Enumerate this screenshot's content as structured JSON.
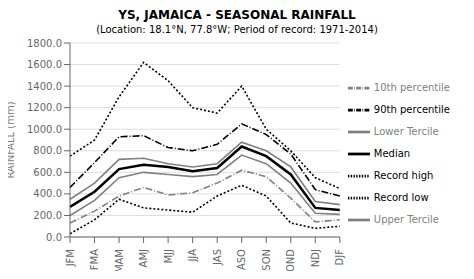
{
  "chart_data": {
    "type": "line",
    "title": "YS, JAMAICA - SEASONAL RAINFALL",
    "subtitle": "(Location: 18.1°N, 77.8°W; Period of record: 1971-2014)",
    "ylabel": "RAINFALL (mm)",
    "categories": [
      "JFM",
      "FMA",
      "MAM",
      "AMJ",
      "MJJ",
      "JJA",
      "JAS",
      "ASO",
      "SON",
      "OND",
      "NDJ",
      "DJF"
    ],
    "series": [
      {
        "name": "Record high",
        "color": "#000000",
        "line_style": "dotted",
        "values": [
          750,
          900,
          1300,
          1620,
          1450,
          1200,
          1150,
          1400,
          1000,
          800,
          550,
          450
        ]
      },
      {
        "name": "90th percentile",
        "color": "#000000",
        "line_style": "dashdot",
        "values": [
          460,
          690,
          930,
          940,
          830,
          800,
          860,
          1050,
          950,
          770,
          440,
          380
        ]
      },
      {
        "name": "Upper Tercile",
        "color": "#808080",
        "line_style": "solid",
        "values": [
          350,
          500,
          720,
          730,
          680,
          650,
          680,
          880,
          800,
          650,
          330,
          300
        ]
      },
      {
        "name": "Median",
        "color": "#000000",
        "line_style": "solid",
        "values": [
          280,
          420,
          630,
          670,
          650,
          610,
          640,
          840,
          750,
          580,
          270,
          250
        ]
      },
      {
        "name": "Lower Tercile",
        "color": "#808080",
        "line_style": "solid",
        "values": [
          200,
          340,
          550,
          600,
          580,
          560,
          580,
          760,
          680,
          500,
          220,
          210
        ]
      },
      {
        "name": "10th percentile",
        "color": "#808080",
        "line_style": "dashdot",
        "values": [
          130,
          240,
          380,
          460,
          390,
          410,
          500,
          620,
          560,
          360,
          140,
          160
        ]
      },
      {
        "name": "Record low",
        "color": "#000000",
        "line_style": "dotted",
        "values": [
          30,
          160,
          350,
          270,
          250,
          230,
          380,
          480,
          380,
          130,
          80,
          100
        ]
      }
    ],
    "ylim": [
      0,
      1800
    ],
    "yticks": [
      {
        "value": 0,
        "label": "0.0"
      },
      {
        "value": 200,
        "label": "200.0"
      },
      {
        "value": 400,
        "label": "400.0"
      },
      {
        "value": 600,
        "label": "600.0"
      },
      {
        "value": 800,
        "label": "800.0"
      },
      {
        "value": 1000,
        "label": "1000.0"
      },
      {
        "value": 1200,
        "label": "1200.0"
      },
      {
        "value": 1400,
        "label": "1400.0"
      },
      {
        "value": 1600,
        "label": "1600.0"
      },
      {
        "value": 1800,
        "label": "1800.0"
      }
    ],
    "grid": "y",
    "legend": "right"
  }
}
